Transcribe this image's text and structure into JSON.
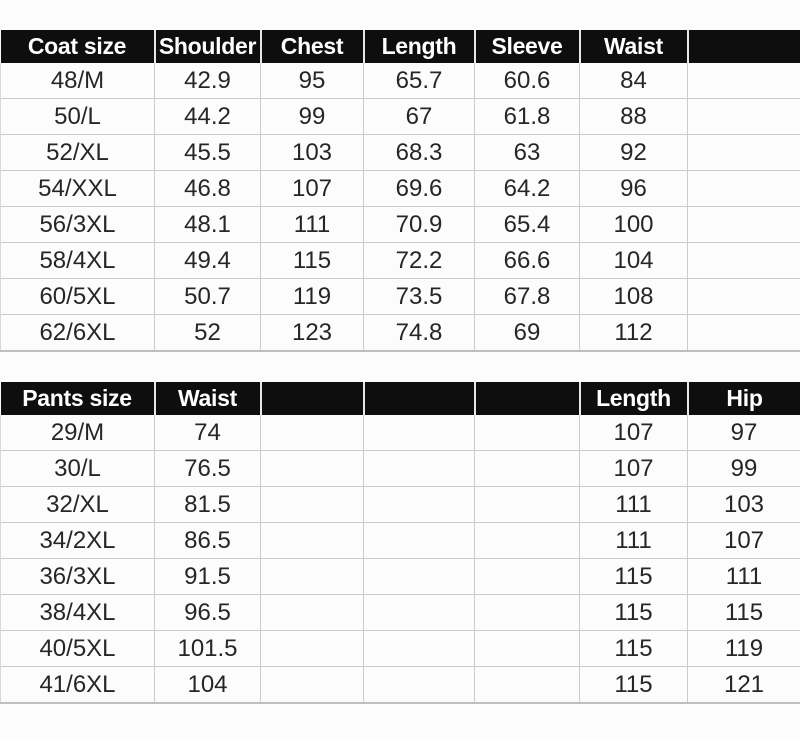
{
  "colors": {
    "page_bg": "#fcfcfc",
    "header_bg": "#0e0e0e",
    "header_text": "#ffffff",
    "cell_text": "#262626",
    "grid_line": "#cbcbcb"
  },
  "tables": [
    {
      "name": "coat-size-table",
      "headers": [
        "Coat size",
        "Shoulder",
        "Chest",
        "Length",
        "Sleeve",
        "Waist",
        ""
      ],
      "rows": [
        [
          "48/M",
          "42.9",
          "95",
          "65.7",
          "60.6",
          "84",
          ""
        ],
        [
          "50/L",
          "44.2",
          "99",
          "67",
          "61.8",
          "88",
          ""
        ],
        [
          "52/XL",
          "45.5",
          "103",
          "68.3",
          "63",
          "92",
          ""
        ],
        [
          "54/XXL",
          "46.8",
          "107",
          "69.6",
          "64.2",
          "96",
          ""
        ],
        [
          "56/3XL",
          "48.1",
          "111",
          "70.9",
          "65.4",
          "100",
          ""
        ],
        [
          "58/4XL",
          "49.4",
          "115",
          "72.2",
          "66.6",
          "104",
          ""
        ],
        [
          "60/5XL",
          "50.7",
          "119",
          "73.5",
          "67.8",
          "108",
          ""
        ],
        [
          "62/6XL",
          "52",
          "123",
          "74.8",
          "69",
          "112",
          ""
        ]
      ]
    },
    {
      "name": "pants-size-table",
      "headers": [
        "Pants size",
        "Waist",
        "",
        "",
        "",
        "Length",
        "Hip"
      ],
      "rows": [
        [
          "29/M",
          "74",
          "",
          "",
          "",
          "107",
          "97"
        ],
        [
          "30/L",
          "76.5",
          "",
          "",
          "",
          "107",
          "99"
        ],
        [
          "32/XL",
          "81.5",
          "",
          "",
          "",
          "111",
          "103"
        ],
        [
          "34/2XL",
          "86.5",
          "",
          "",
          "",
          "111",
          "107"
        ],
        [
          "36/3XL",
          "91.5",
          "",
          "",
          "",
          "115",
          "111"
        ],
        [
          "38/4XL",
          "96.5",
          "",
          "",
          "",
          "115",
          "115"
        ],
        [
          "40/5XL",
          "101.5",
          "",
          "",
          "",
          "115",
          "119"
        ],
        [
          "41/6XL",
          "104",
          "",
          "",
          "",
          "115",
          "121"
        ]
      ]
    }
  ]
}
